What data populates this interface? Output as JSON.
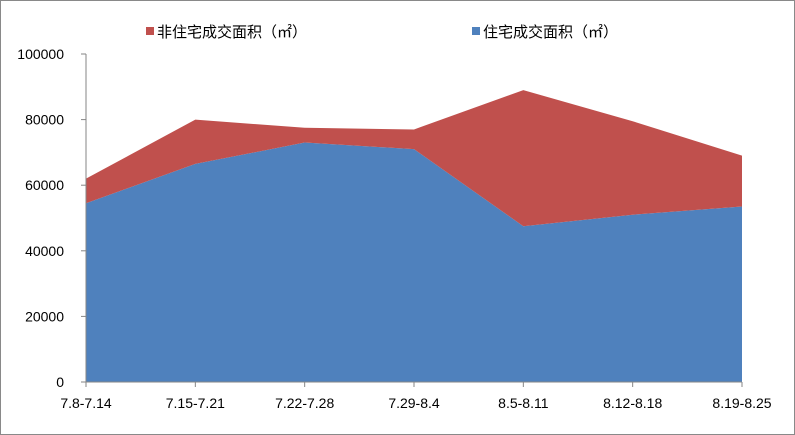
{
  "chart_data": {
    "type": "area",
    "stacked": true,
    "categories": [
      "7.8-7.14",
      "7.15-7.21",
      "7.22-7.28",
      "7.29-8.4",
      "8.5-8.11",
      "8.12-8.18",
      "8.19-8.25"
    ],
    "series": [
      {
        "name": "住宅成交面积（㎡）",
        "color": "#4f81bd",
        "values": [
          54500,
          66500,
          73000,
          71000,
          47500,
          51000,
          53500
        ]
      },
      {
        "name": "非住宅成交面积（㎡）",
        "color": "#c0504d",
        "values": [
          7500,
          13500,
          4500,
          6000,
          41500,
          28500,
          15500
        ]
      }
    ],
    "legend_order": [
      1,
      0
    ],
    "legend_position": "top",
    "ylim": [
      0,
      100000
    ],
    "yticks": [
      0,
      20000,
      40000,
      60000,
      80000,
      100000
    ],
    "grid": false
  }
}
